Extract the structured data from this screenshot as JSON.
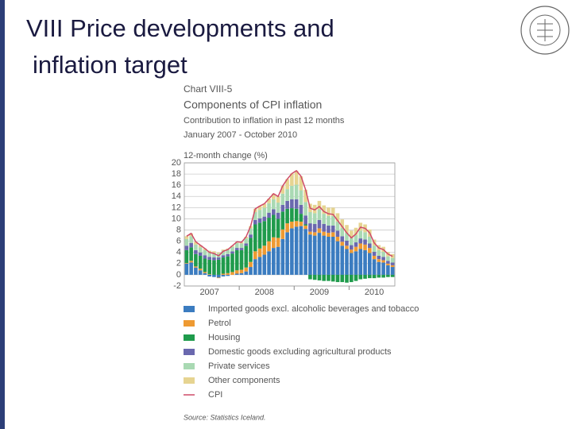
{
  "slide": {
    "title_lines": [
      "VIII Price developments and",
      "inflation target"
    ]
  },
  "chart_data": {
    "type": "bar",
    "stacked": true,
    "label": "Chart VIII-5",
    "title": "Components of CPI inflation",
    "subtitle": "Contribution to inflation in past 12 months",
    "period": "January 2007 - October 2010",
    "y_label": "12-month change (%)",
    "source": "Source: Statistics Iceland.",
    "categories": [
      null,
      null,
      null,
      null,
      null,
      "2007",
      null,
      null,
      null,
      null,
      null,
      null,
      null,
      null,
      null,
      null,
      null,
      "2008",
      null,
      null,
      null,
      null,
      null,
      null,
      null,
      null,
      null,
      null,
      null,
      "2009",
      null,
      null,
      null,
      null,
      null,
      null,
      null,
      null,
      null,
      null,
      null,
      "2010",
      null,
      null,
      null,
      null
    ],
    "ylim": [
      -2,
      20
    ],
    "yticks": [
      -2,
      0,
      2,
      4,
      6,
      8,
      10,
      12,
      14,
      16,
      18,
      20
    ],
    "grid": true,
    "series": [
      {
        "name": "Imported goods excl. alcoholic beverages and tobacco",
        "color": "#3b7cc0",
        "kind": "bar",
        "values": [
          2.0,
          2.2,
          1.3,
          0.8,
          0.3,
          -0.3,
          -0.4,
          -0.5,
          -0.3,
          -0.2,
          0.0,
          0.2,
          0.3,
          0.6,
          1.4,
          2.8,
          3.2,
          3.6,
          4.2,
          4.8,
          5.0,
          6.4,
          7.6,
          8.3,
          8.6,
          8.7,
          8.2,
          7.2,
          7.0,
          7.5,
          7.0,
          6.8,
          6.8,
          6.0,
          5.2,
          4.6,
          3.9,
          4.2,
          4.6,
          4.4,
          3.9,
          2.8,
          2.3,
          2.2,
          1.7,
          1.4
        ]
      },
      {
        "name": "Petrol",
        "color": "#ee9a32",
        "kind": "bar",
        "values": [
          0.1,
          0.3,
          0.2,
          0.3,
          0.2,
          0.1,
          0.0,
          -0.1,
          0.2,
          0.3,
          0.5,
          0.6,
          0.6,
          0.7,
          0.9,
          1.4,
          1.5,
          1.6,
          1.8,
          1.9,
          1.6,
          1.7,
          1.6,
          1.2,
          1.0,
          0.8,
          0.6,
          0.5,
          0.6,
          0.8,
          0.7,
          0.7,
          0.8,
          0.8,
          0.7,
          0.6,
          0.6,
          0.8,
          1.0,
          1.0,
          0.9,
          0.6,
          0.5,
          0.4,
          0.3,
          0.3
        ]
      },
      {
        "name": "Housing",
        "color": "#1f9b4c",
        "kind": "bar",
        "values": [
          2.3,
          2.4,
          2.2,
          2.3,
          2.4,
          2.6,
          2.6,
          2.7,
          2.9,
          3.0,
          3.3,
          3.6,
          3.5,
          3.9,
          4.3,
          4.8,
          4.6,
          4.4,
          4.2,
          4.0,
          3.4,
          3.2,
          2.6,
          2.4,
          2.2,
          1.4,
          0.2,
          -0.8,
          -0.9,
          -1.0,
          -1.1,
          -1.1,
          -1.2,
          -1.3,
          -1.3,
          -1.4,
          -1.3,
          -1.1,
          -0.8,
          -0.7,
          -0.6,
          -0.6,
          -0.5,
          -0.5,
          -0.4,
          -0.4
        ]
      },
      {
        "name": "Domestic goods excluding agricultural products",
        "color": "#6a68ae",
        "kind": "bar",
        "values": [
          0.8,
          0.8,
          0.7,
          0.6,
          0.6,
          0.5,
          0.5,
          0.4,
          0.4,
          0.4,
          0.4,
          0.4,
          0.4,
          0.4,
          0.6,
          0.8,
          0.8,
          0.8,
          0.9,
          1.0,
          1.1,
          1.2,
          1.4,
          1.6,
          1.7,
          1.6,
          1.6,
          1.5,
          1.5,
          1.5,
          1.4,
          1.3,
          1.2,
          1.1,
          1.0,
          0.9,
          0.8,
          0.8,
          0.9,
          0.9,
          0.8,
          0.7,
          0.6,
          0.6,
          0.5,
          0.5
        ]
      },
      {
        "name": "Private services",
        "color": "#a9d9b3",
        "kind": "bar",
        "values": [
          1.2,
          1.2,
          1.0,
          0.9,
          0.9,
          0.8,
          0.8,
          0.7,
          0.8,
          0.8,
          0.8,
          0.9,
          0.8,
          0.9,
          1.1,
          1.4,
          1.5,
          1.6,
          1.7,
          1.8,
          1.8,
          2.0,
          2.1,
          2.4,
          2.6,
          2.6,
          2.4,
          2.0,
          1.9,
          1.9,
          1.8,
          1.7,
          1.7,
          1.6,
          1.5,
          1.4,
          1.3,
          1.3,
          1.4,
          1.3,
          1.2,
          1.1,
          1.0,
          0.9,
          0.8,
          0.8
        ]
      },
      {
        "name": "Other components",
        "color": "#e6d491",
        "kind": "bar",
        "values": [
          0.5,
          0.5,
          0.5,
          0.4,
          0.3,
          0.3,
          0.3,
          0.2,
          0.2,
          0.2,
          0.2,
          0.2,
          0.2,
          0.3,
          0.4,
          0.6,
          0.7,
          0.7,
          0.8,
          1.0,
          1.1,
          1.4,
          1.8,
          2.2,
          2.5,
          2.5,
          2.2,
          1.5,
          1.5,
          1.5,
          1.5,
          1.5,
          1.5,
          1.5,
          1.5,
          1.4,
          1.3,
          1.3,
          1.4,
          1.4,
          1.3,
          1.1,
          0.9,
          0.9,
          0.8,
          0.7
        ]
      },
      {
        "name": "CPI",
        "color": "#cf4a68",
        "kind": "line",
        "values": [
          6.9,
          7.4,
          5.9,
          5.3,
          4.7,
          4.0,
          3.8,
          3.4,
          4.2,
          4.5,
          5.2,
          5.9,
          5.8,
          6.8,
          8.7,
          11.8,
          12.3,
          12.7,
          13.6,
          14.5,
          14.0,
          15.9,
          17.1,
          18.1,
          18.6,
          17.6,
          15.2,
          11.9,
          11.6,
          12.2,
          11.3,
          10.9,
          10.8,
          9.7,
          8.6,
          7.5,
          6.6,
          7.3,
          8.5,
          8.3,
          7.5,
          5.7,
          4.8,
          4.5,
          3.7,
          3.3
        ]
      }
    ]
  }
}
